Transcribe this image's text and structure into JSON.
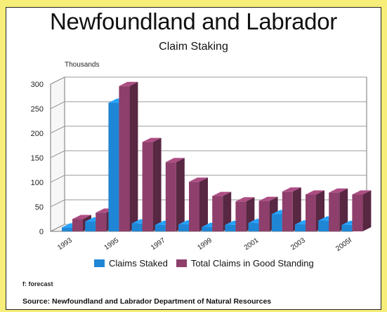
{
  "page": {
    "title": "Newfoundland and Labrador",
    "note": "f: forecast",
    "source": "Source: Newfoundland and Labrador Department of Natural Resources"
  },
  "colors": {
    "frame": "#f7ee7a",
    "staked": "#1f86d6",
    "standing": "#8e3f6b"
  },
  "chart_data": {
    "type": "bar",
    "title": "Claim Staking",
    "ylabel": "Thousands",
    "xlabel": "",
    "ylim": [
      0,
      300
    ],
    "yticks": [
      0,
      50,
      100,
      150,
      200,
      250,
      300
    ],
    "categories": [
      "1993",
      "1994",
      "1995",
      "1996",
      "1997",
      "1998",
      "1999",
      "2000",
      "2001",
      "2002",
      "2003",
      "2004",
      "2005f"
    ],
    "tick_labels": [
      "1993",
      "1995",
      "1997",
      "1999",
      "2001",
      "2003",
      "2005f"
    ],
    "series": [
      {
        "name": "Claims Staked",
        "color": "#1f86d6",
        "values": [
          8,
          20,
          262,
          16,
          13,
          14,
          9,
          13,
          17,
          35,
          14,
          22,
          13
        ]
      },
      {
        "name": "Total Claims in Good Standing",
        "color": "#8e3f6b",
        "values": [
          25,
          38,
          296,
          182,
          141,
          101,
          72,
          61,
          62,
          81,
          75,
          79,
          75
        ]
      }
    ],
    "legend_position": "bottom",
    "grid": true
  }
}
